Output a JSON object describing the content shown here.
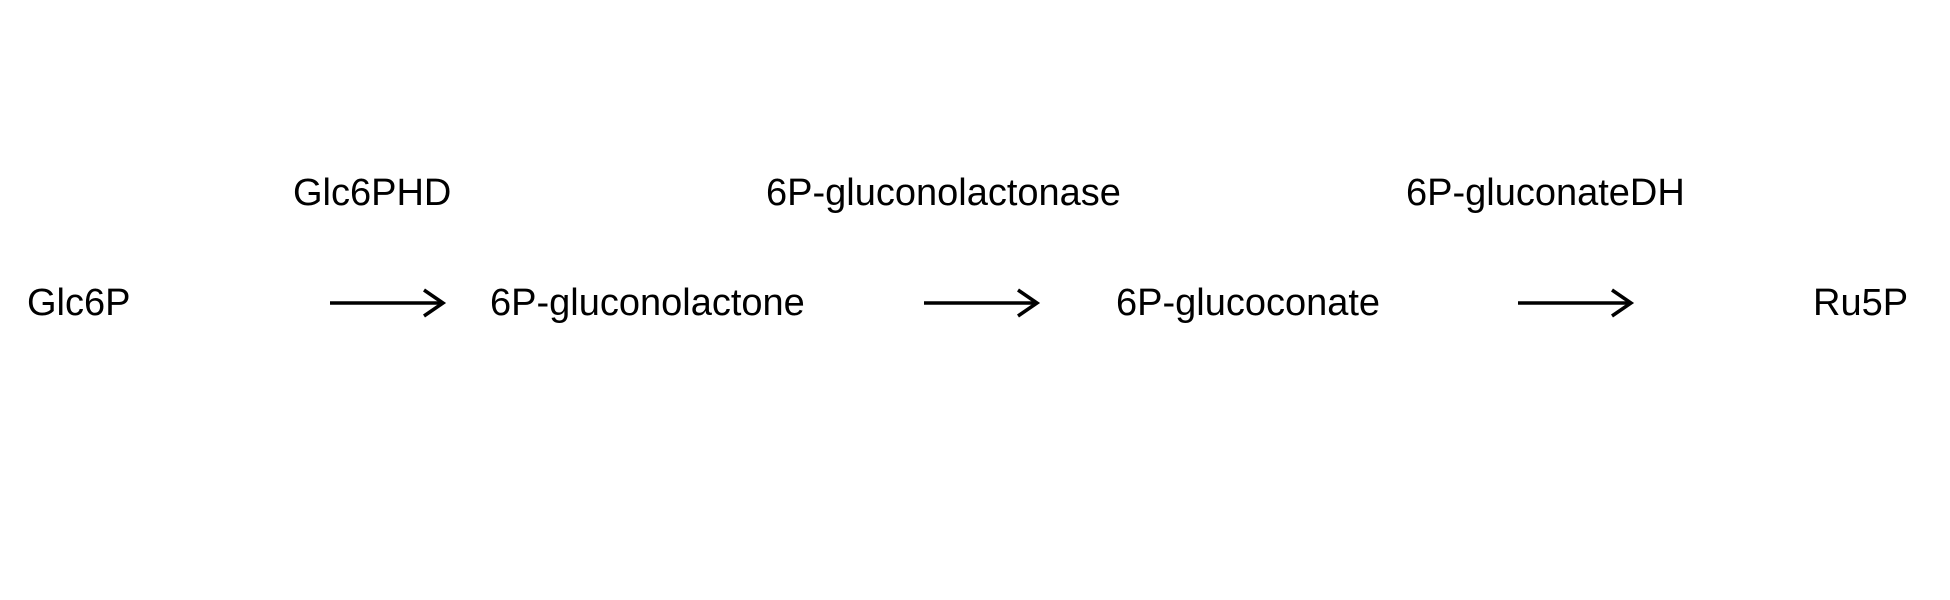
{
  "pathway": {
    "compounds": [
      {
        "label": "Glc6P"
      },
      {
        "label": "6P-gluconolactone"
      },
      {
        "label": "6P-glucoconate"
      },
      {
        "label": "Ru5P"
      }
    ],
    "enzymes": [
      {
        "label": "Glc6PHD"
      },
      {
        "label": "6P-gluconolactonase"
      },
      {
        "label": "6P-gluconateDH"
      }
    ],
    "colors": {
      "text": "#000000",
      "arrow": "#000000",
      "background": "#ffffff"
    }
  }
}
